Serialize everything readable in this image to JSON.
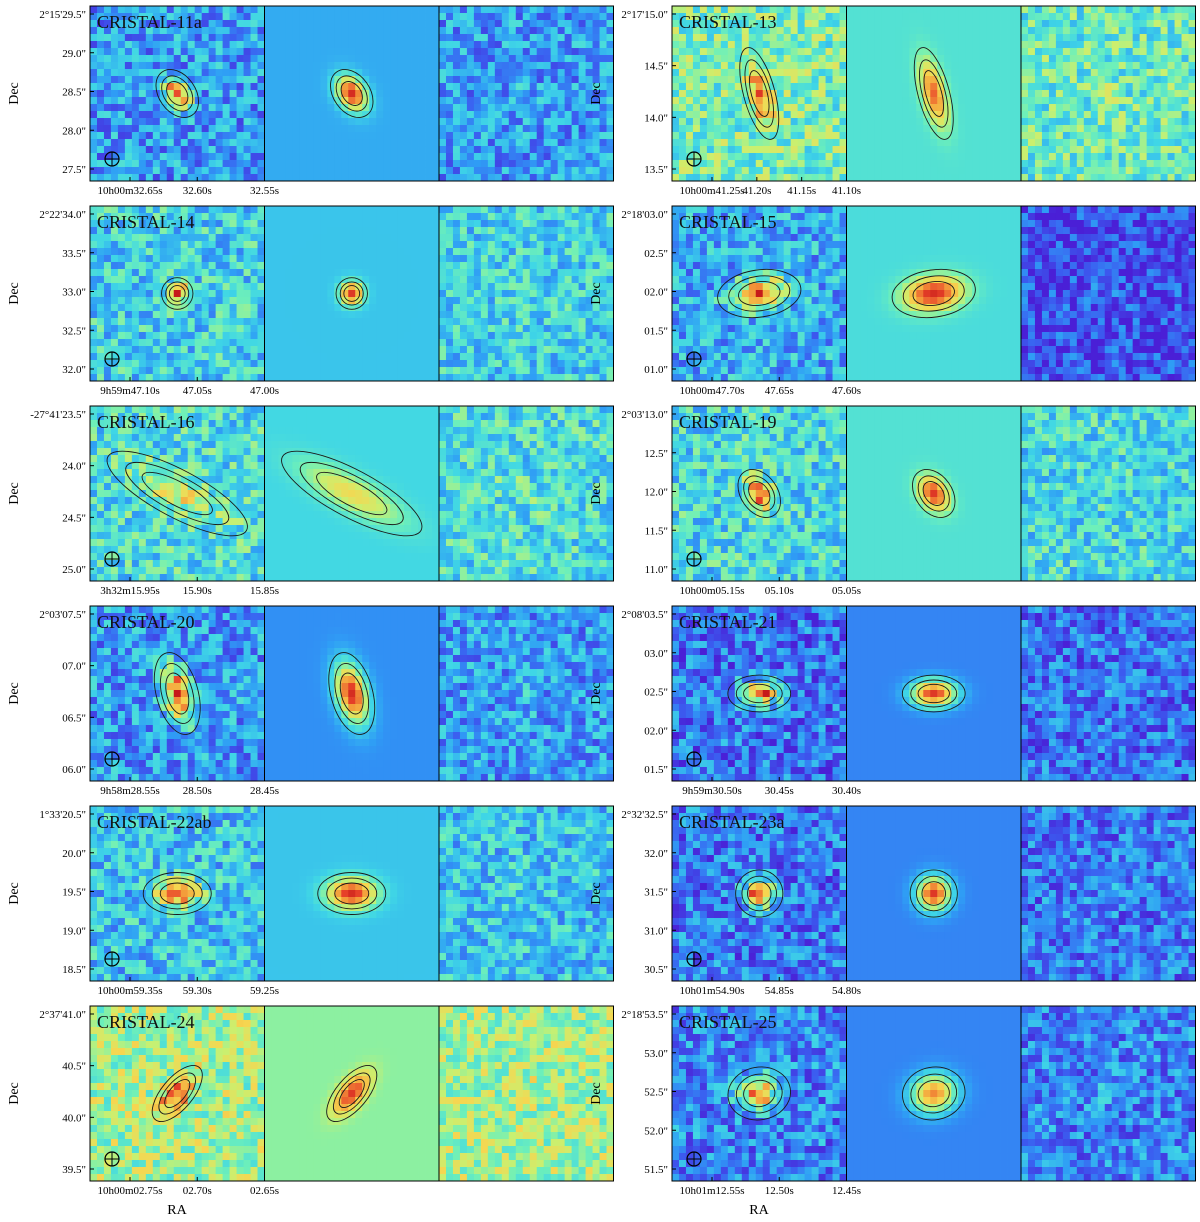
{
  "figure": {
    "axis_labels": {
      "y": "Dec",
      "x": "RA"
    },
    "column_titles": [
      "",
      "",
      ""
    ],
    "colors": {
      "frame": "#000000",
      "contour": "#1a1a1a",
      "cmap": [
        "#4a1fd6",
        "#3b5df0",
        "#2f9df5",
        "#3fd6e6",
        "#6ff0b8",
        "#c9f070",
        "#f6d650",
        "#f39a3a",
        "#e8442a",
        "#c61a1a"
      ]
    },
    "objects": [
      {
        "name": "CRISTAL-11a",
        "dec_ticks": [
          "2°15'29.5\"",
          "29.0\"",
          "28.5\"",
          "28.0\"",
          "27.5\""
        ],
        "ra_ticks": [
          "10h00m32.65s",
          "32.60s",
          "32.55s"
        ],
        "bg": {
          "obs": 0.22,
          "model": 0.25,
          "res": 0.22
        },
        "src": {
          "level": 0.95,
          "rx": 0.07,
          "ry": 0.1,
          "tilt": -35
        }
      },
      {
        "name": "CRISTAL-13",
        "dec_ticks": [
          "2°17'15.0\"",
          "14.5\"",
          "14.0\"",
          "13.5\""
        ],
        "ra_ticks": [
          "10h00m41.25s",
          "41.20s",
          "41.15s",
          "41.10s"
        ],
        "bg": {
          "obs": 0.45,
          "model": 0.38,
          "res": 0.42
        },
        "src": {
          "level": 0.85,
          "rx": 0.06,
          "ry": 0.18,
          "tilt": -15
        }
      },
      {
        "name": "CRISTAL-14",
        "dec_ticks": [
          "2°22'34.0\"",
          "33.5\"",
          "33.0\"",
          "32.5\"",
          "32.0\""
        ],
        "ra_ticks": [
          "9h59m47.10s",
          "47.05s",
          "47.00s"
        ],
        "bg": {
          "obs": 0.33,
          "model": 0.3,
          "res": 0.33
        },
        "src": {
          "level": 0.92,
          "rx": 0.06,
          "ry": 0.06,
          "tilt": 0
        }
      },
      {
        "name": "CRISTAL-15",
        "dec_ticks": [
          "2°18'03.0\"",
          "02.5\"",
          "02.0\"",
          "01.5\"",
          "01.0\""
        ],
        "ra_ticks": [
          "10h00m47.70s",
          "47.65s",
          "47.60s"
        ],
        "bg": {
          "obs": 0.25,
          "model": 0.36,
          "res": 0.08
        },
        "src": {
          "level": 0.95,
          "rx": 0.16,
          "ry": 0.09,
          "tilt": -8
        }
      },
      {
        "name": "CRISTAL-16",
        "dec_ticks": [
          "-27°41'23.5\"",
          "24.0\"",
          "24.5\"",
          "25.0\""
        ],
        "ra_ticks": [
          "3h32m15.95s",
          "15.90s",
          "15.85s"
        ],
        "bg": {
          "obs": 0.36,
          "model": 0.34,
          "res": 0.36
        },
        "src": {
          "level": 0.65,
          "rx": 0.3,
          "ry": 0.09,
          "tilt": 28
        }
      },
      {
        "name": "CRISTAL-19",
        "dec_ticks": [
          "2°03'13.0\"",
          "12.5\"",
          "12.0\"",
          "11.5\"",
          "11.0\""
        ],
        "ra_ticks": [
          "10h00m05.15s",
          "05.10s",
          "05.05s"
        ],
        "bg": {
          "obs": 0.35,
          "model": 0.38,
          "res": 0.35
        },
        "src": {
          "level": 0.92,
          "rx": 0.07,
          "ry": 0.1,
          "tilt": -35
        }
      },
      {
        "name": "CRISTAL-20",
        "dec_ticks": [
          "2°03'07.5\"",
          "07.0\"",
          "06.5\"",
          "06.0\""
        ],
        "ra_ticks": [
          "9h58m28.55s",
          "28.50s",
          "28.45s"
        ],
        "bg": {
          "obs": 0.22,
          "model": 0.2,
          "res": 0.22
        },
        "src": {
          "level": 0.95,
          "rx": 0.08,
          "ry": 0.16,
          "tilt": -15
        }
      },
      {
        "name": "CRISTAL-21",
        "dec_ticks": [
          "2°08'03.5\"",
          "03.0\"",
          "02.5\"",
          "02.0\"",
          "01.5\""
        ],
        "ra_ticks": [
          "9h59m30.50s",
          "30.45s",
          "30.40s"
        ],
        "bg": {
          "obs": 0.15,
          "model": 0.18,
          "res": 0.15
        },
        "src": {
          "level": 0.92,
          "rx": 0.12,
          "ry": 0.07,
          "tilt": 0
        }
      },
      {
        "name": "CRISTAL-22ab",
        "dec_ticks": [
          "1°33'20.5\"",
          "20.0\"",
          "19.5\"",
          "19.0\"",
          "18.5\""
        ],
        "ra_ticks": [
          "10h00m59.35s",
          "59.30s",
          "59.25s"
        ],
        "bg": {
          "obs": 0.3,
          "model": 0.3,
          "res": 0.3
        },
        "src": {
          "level": 0.95,
          "rx": 0.13,
          "ry": 0.08,
          "tilt": 0
        }
      },
      {
        "name": "CRISTAL-23a",
        "dec_ticks": [
          "2°32'32.5\"",
          "32.0\"",
          "31.5\"",
          "31.0\"",
          "30.5\""
        ],
        "ra_ticks": [
          "10h01m54.90s",
          "54.85s",
          "54.80s"
        ],
        "bg": {
          "obs": 0.16,
          "model": 0.18,
          "res": 0.16
        },
        "src": {
          "level": 0.92,
          "rx": 0.09,
          "ry": 0.09,
          "tilt": 0
        }
      },
      {
        "name": "CRISTAL-24",
        "dec_ticks": [
          "2°37'41.0\"",
          "40.5\"",
          "40.0\"",
          "39.5\""
        ],
        "ra_ticks": [
          "10h00m02.75s",
          "02.70s",
          "02.65s"
        ],
        "bg": {
          "obs": 0.52,
          "model": 0.48,
          "res": 0.52
        },
        "src": {
          "level": 0.92,
          "rx": 0.06,
          "ry": 0.13,
          "tilt": 40
        }
      },
      {
        "name": "CRISTAL-25",
        "dec_ticks": [
          "2°18'53.5\"",
          "53.0\"",
          "52.5\"",
          "52.0\"",
          "51.5\""
        ],
        "ra_ticks": [
          "10h01m12.55s",
          "12.50s",
          "12.45s"
        ],
        "bg": {
          "obs": 0.18,
          "model": 0.18,
          "res": 0.18
        },
        "src": {
          "level": 0.8,
          "rx": 0.12,
          "ry": 0.1,
          "tilt": -10
        }
      }
    ]
  }
}
